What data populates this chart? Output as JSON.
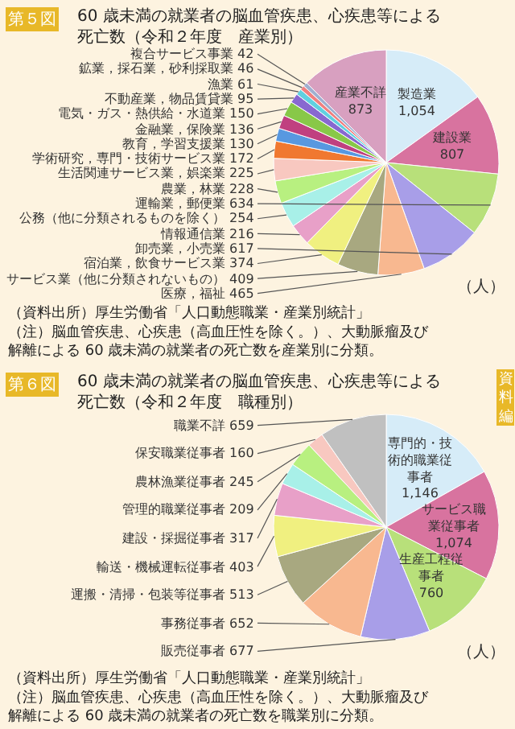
{
  "chart_data": [
    {
      "type": "pie",
      "title": "第５図",
      "subtitle": "60 歳未満の就業者の脳血管疾患、心疾患等による死亡数（令和２年度　産業別）",
      "categories": [
        "製造業",
        "建設業",
        "運輸業，郵便業",
        "卸売業，小売業",
        "医療，福祉",
        "サービス業（他に分類されないもの）",
        "宿泊業，飲食サービス業",
        "情報通信業",
        "公務（他に分類されるものを除く）",
        "農業，林業",
        "生活関連サービス業，娯楽業",
        "学術研究，専門・技術サービス業",
        "教育，学習支援業",
        "金融業，保険業",
        "電気・ガス・熱供給・水道業",
        "不動産業，物品賃貸業",
        "漁業",
        "鉱業，採石業，砂利採取業",
        "複合サービス事業",
        "産業不詳"
      ],
      "values": [
        1054,
        807,
        634,
        617,
        465,
        409,
        374,
        216,
        254,
        228,
        225,
        172,
        130,
        136,
        150,
        95,
        61,
        46,
        42,
        873
      ],
      "value_labels": [
        "1,054",
        "807",
        "634",
        "617",
        "465",
        "409",
        "374",
        "216",
        "254",
        "228",
        "225",
        "172",
        "130",
        "136",
        "150",
        "95",
        "61",
        "46",
        "42",
        "873"
      ],
      "colors": [
        "#d6ecf8",
        "#d8739f",
        "#b8e07a",
        "#a89ee8",
        "#f8b890",
        "#a8a880",
        "#f0f080",
        "#e8a0c8",
        "#a8f0e8",
        "#b8f080",
        "#f8c8c0",
        "#f07830",
        "#5898e0",
        "#c04080",
        "#88c848",
        "#8868d0",
        "#60d0e0",
        "#f08080",
        "#a0b0d0",
        "#d8a0c0"
      ],
      "annotations": [
        "（人）",
        "（資料出所）厚生労働省「人口動態職業・産業別統計」",
        "（注）脳血管疾患、心疾患（高血圧性を除く。）、大動脈瘤及び解離による 60 歳未満の就業者の死亡数を産業別に分類。"
      ]
    },
    {
      "type": "pie",
      "title": "第６図",
      "subtitle": "60 歳未満の就業者の脳血管疾患、心疾患等による死亡数（令和２年度　職種別）",
      "categories": [
        "専門的・技術的職業従事者",
        "サービス職業従事者",
        "生産工程従事者",
        "販売従事者",
        "事務従事者",
        "運搬・清掃・包装等従事者",
        "輸送・機械運転従事者",
        "建設・採掘従事者",
        "管理的職業従事者",
        "農林漁業従事者",
        "保安職業従事者",
        "職業不詳"
      ],
      "values": [
        1146,
        1074,
        760,
        677,
        652,
        513,
        403,
        317,
        209,
        245,
        160,
        659
      ],
      "value_labels": [
        "1,146",
        "1,074",
        "760",
        "677",
        "652",
        "513",
        "403",
        "317",
        "209",
        "245",
        "160",
        "659"
      ],
      "colors": [
        "#d6ecf8",
        "#d8739f",
        "#b8e07a",
        "#a89ee8",
        "#f8b890",
        "#a8a880",
        "#f0f080",
        "#e8a0c8",
        "#a8f0e8",
        "#b8f080",
        "#f8c8c0",
        "#c0c0c0"
      ],
      "annotations": [
        "（人）",
        "（資料出所）厚生労働省「人口動態職業・産業別統計」",
        "（注）脳血管疾患、心疾患（高血圧性を除く。）、大動脈瘤及び解離による 60 歳未満の就業者の死亡数を職業別に分類。",
        "資料編"
      ]
    }
  ]
}
